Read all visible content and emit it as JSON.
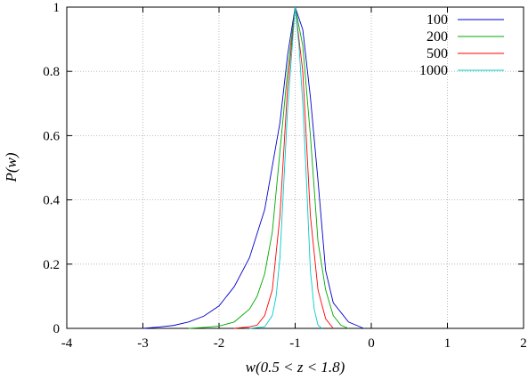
{
  "chart_data": {
    "type": "line",
    "title": "",
    "xlabel": "w(0.5 < z < 1.8)",
    "ylabel": "P(w)",
    "xlim": [
      -4,
      2
    ],
    "ylim": [
      0,
      1
    ],
    "xticks": [
      "-4",
      "-3",
      "-2",
      "-1",
      "0",
      "1",
      "2"
    ],
    "yticks": [
      "0",
      "0.2",
      "0.4",
      "0.6",
      "0.8",
      "1"
    ],
    "grid": true,
    "legend_position": "top-right",
    "series": [
      {
        "name": "100",
        "color": "#0000cc",
        "points": [
          [
            -3.0,
            0.0
          ],
          [
            -2.8,
            0.004
          ],
          [
            -2.6,
            0.009
          ],
          [
            -2.4,
            0.02
          ],
          [
            -2.2,
            0.038
          ],
          [
            -2.0,
            0.07
          ],
          [
            -1.8,
            0.13
          ],
          [
            -1.6,
            0.22
          ],
          [
            -1.4,
            0.37
          ],
          [
            -1.2,
            0.64
          ],
          [
            -1.1,
            0.85
          ],
          [
            -1.0,
            1.0
          ],
          [
            -0.9,
            0.93
          ],
          [
            -0.8,
            0.72
          ],
          [
            -0.7,
            0.46
          ],
          [
            -0.6,
            0.18
          ],
          [
            -0.5,
            0.08
          ],
          [
            -0.4,
            0.05
          ],
          [
            -0.3,
            0.02
          ],
          [
            -0.2,
            0.01
          ],
          [
            -0.1,
            0.0
          ]
        ]
      },
      {
        "name": "200",
        "color": "#00aa00",
        "points": [
          [
            -2.4,
            0.0
          ],
          [
            -2.2,
            0.003
          ],
          [
            -2.0,
            0.007
          ],
          [
            -1.8,
            0.02
          ],
          [
            -1.6,
            0.06
          ],
          [
            -1.5,
            0.1
          ],
          [
            -1.4,
            0.17
          ],
          [
            -1.3,
            0.3
          ],
          [
            -1.2,
            0.55
          ],
          [
            -1.1,
            0.8
          ],
          [
            -1.0,
            1.0
          ],
          [
            -0.9,
            0.88
          ],
          [
            -0.8,
            0.6
          ],
          [
            -0.7,
            0.27
          ],
          [
            -0.6,
            0.12
          ],
          [
            -0.5,
            0.04
          ],
          [
            -0.4,
            0.01
          ],
          [
            -0.3,
            0.0
          ]
        ]
      },
      {
        "name": "500",
        "color": "#ff0000",
        "points": [
          [
            -1.8,
            0.0
          ],
          [
            -1.6,
            0.005
          ],
          [
            -1.5,
            0.01
          ],
          [
            -1.4,
            0.04
          ],
          [
            -1.3,
            0.12
          ],
          [
            -1.2,
            0.35
          ],
          [
            -1.1,
            0.75
          ],
          [
            -1.0,
            1.0
          ],
          [
            -0.9,
            0.8
          ],
          [
            -0.8,
            0.35
          ],
          [
            -0.7,
            0.12
          ],
          [
            -0.6,
            0.03
          ],
          [
            -0.5,
            0.0
          ]
        ]
      },
      {
        "name": "1000",
        "color": "#00cccc",
        "points": [
          [
            -1.6,
            0.0
          ],
          [
            -1.4,
            0.005
          ],
          [
            -1.3,
            0.04
          ],
          [
            -1.25,
            0.1
          ],
          [
            -1.2,
            0.22
          ],
          [
            -1.1,
            0.68
          ],
          [
            -1.0,
            1.0
          ],
          [
            -0.95,
            0.88
          ],
          [
            -0.9,
            0.7
          ],
          [
            -0.85,
            0.45
          ],
          [
            -0.8,
            0.18
          ],
          [
            -0.75,
            0.06
          ],
          [
            -0.7,
            0.01
          ],
          [
            -0.65,
            0.0
          ]
        ]
      }
    ]
  }
}
